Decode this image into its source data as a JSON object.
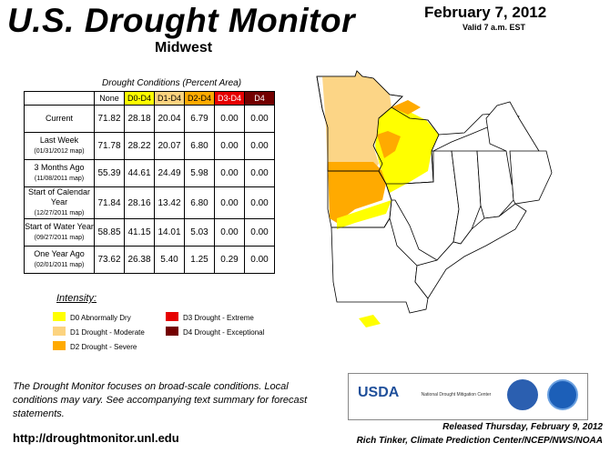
{
  "header": {
    "title": "U.S. Drought Monitor",
    "region": "Midwest",
    "date": "February 7, 2012",
    "valid": "Valid 7 a.m. EST"
  },
  "table": {
    "caption": "Drought Conditions (Percent Area)",
    "columns": [
      "None",
      "D0-D4",
      "D1-D4",
      "D2-D4",
      "D3-D4",
      "D4"
    ],
    "column_colors": [
      "#ffffff",
      "#ffff00",
      "#fcd37f",
      "#ffaa00",
      "#e60000",
      "#730000"
    ],
    "column_text_colors": [
      "#000000",
      "#000000",
      "#000000",
      "#000000",
      "#ffffff",
      "#ffffff"
    ],
    "rows": [
      {
        "label": "Current",
        "sub": "",
        "values": [
          "71.82",
          "28.18",
          "20.04",
          "6.79",
          "0.00",
          "0.00"
        ]
      },
      {
        "label": "Last Week",
        "sub": "(01/31/2012 map)",
        "values": [
          "71.78",
          "28.22",
          "20.07",
          "6.80",
          "0.00",
          "0.00"
        ]
      },
      {
        "label": "3 Months Ago",
        "sub": "(11/08/2011 map)",
        "values": [
          "55.39",
          "44.61",
          "24.49",
          "5.98",
          "0.00",
          "0.00"
        ]
      },
      {
        "label": "Start of Calendar Year",
        "sub": "(12/27/2011 map)",
        "values": [
          "71.84",
          "28.16",
          "13.42",
          "6.80",
          "0.00",
          "0.00"
        ]
      },
      {
        "label": "Start of Water Year",
        "sub": "(09/27/2011 map)",
        "values": [
          "58.85",
          "41.15",
          "14.01",
          "5.03",
          "0.00",
          "0.00"
        ]
      },
      {
        "label": "One Year Ago",
        "sub": "(02/01/2011 map)",
        "values": [
          "73.62",
          "26.38",
          "5.40",
          "1.25",
          "0.29",
          "0.00"
        ]
      }
    ]
  },
  "legend": {
    "title": "Intensity:",
    "items": [
      {
        "label": "D0 Abnormally Dry",
        "color": "#ffff00"
      },
      {
        "label": "D1 Drought - Moderate",
        "color": "#fcd37f"
      },
      {
        "label": "D2 Drought - Severe",
        "color": "#ffaa00"
      },
      {
        "label": "D3 Drought - Extreme",
        "color": "#e60000"
      },
      {
        "label": "D4 Drought - Exceptional",
        "color": "#730000"
      }
    ]
  },
  "footer": {
    "note": "The Drought Monitor focuses on broad-scale conditions. Local conditions may vary. See accompanying text summary for forecast statements.",
    "url": "http://droughtmonitor.unl.edu",
    "released": "Released Thursday, February 9, 2012",
    "author": "Rich Tinker, Climate Prediction Center/NCEP/NWS/NOAA"
  },
  "logos": {
    "usda": "USDA",
    "ndmc": "National Drought Mitigation Center"
  }
}
